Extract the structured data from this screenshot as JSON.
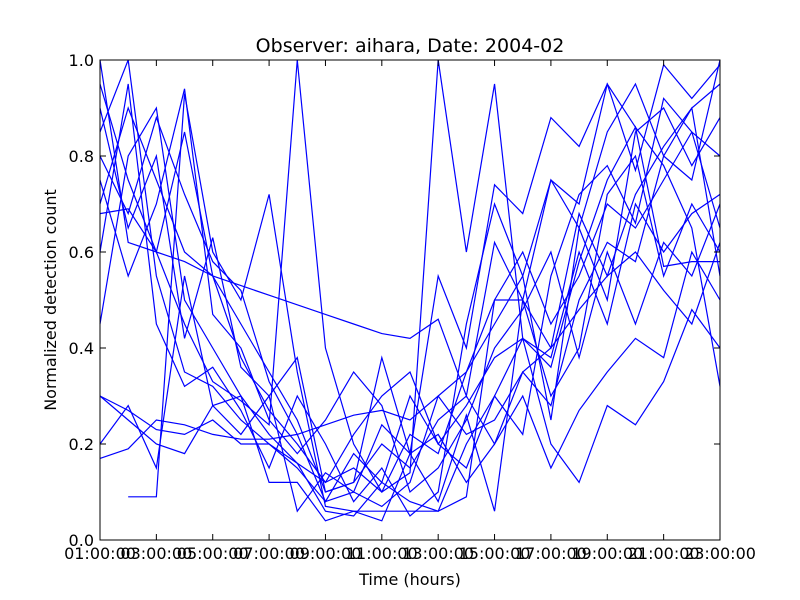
{
  "chart_data": {
    "type": "line",
    "title": "Observer: aihara, Date: 2004-02",
    "xlabel": "Time (hours)",
    "ylabel": "Normalized detection count",
    "xlim": [
      1,
      23
    ],
    "ylim": [
      0,
      1.0
    ],
    "x_ticks": [
      1,
      3,
      5,
      7,
      9,
      11,
      13,
      15,
      17,
      19,
      21,
      23
    ],
    "x_tick_labels": [
      "01:00:00",
      "03:00:00",
      "05:00:00",
      "07:00:00",
      "09:00:00",
      "11:00:00",
      "13:00:00",
      "15:00:00",
      "17:00:00",
      "19:00:00",
      "21:00:00",
      "23:00:00"
    ],
    "y_ticks": [
      0.0,
      0.2,
      0.4,
      0.6,
      0.8,
      1.0
    ],
    "y_tick_labels": [
      "0.0",
      "0.2",
      "0.4",
      "0.6",
      "0.8",
      "1.0"
    ],
    "grid": false,
    "legend": false,
    "line_color": "#0000ff",
    "series": [
      {
        "x": [
          1,
          2,
          3,
          4,
          5,
          6,
          7,
          8,
          9,
          10,
          11,
          12,
          13,
          14,
          15,
          16,
          17,
          18,
          19,
          20,
          21,
          22,
          23
        ],
        "y": [
          0.85,
          1.0,
          0.55,
          0.35,
          0.32,
          0.25,
          0.2,
          0.15,
          0.08,
          0.1,
          0.07,
          0.12,
          0.3,
          0.35,
          0.45,
          0.55,
          0.75,
          0.65,
          0.85,
          0.95,
          0.8,
          0.9,
          0.95
        ]
      },
      {
        "x": [
          1,
          2,
          3,
          4,
          5,
          6,
          7,
          8,
          9,
          10,
          11,
          12,
          13,
          14,
          15,
          16,
          17,
          18,
          19,
          20,
          21,
          22,
          23
        ],
        "y": [
          0.7,
          0.9,
          0.75,
          0.6,
          0.55,
          0.38,
          0.27,
          0.2,
          0.12,
          0.15,
          0.1,
          0.22,
          0.18,
          0.35,
          0.5,
          0.6,
          0.45,
          0.55,
          0.7,
          0.65,
          0.75,
          0.85,
          0.8
        ]
      },
      {
        "x": [
          1,
          2,
          3,
          4,
          5,
          6,
          7,
          8,
          9,
          10,
          11,
          12,
          13,
          14,
          15,
          16,
          17,
          18,
          19,
          20,
          21,
          22,
          23
        ],
        "y": [
          0.45,
          0.8,
          0.9,
          0.5,
          0.4,
          0.3,
          0.22,
          0.16,
          0.06,
          0.05,
          0.12,
          0.08,
          0.06,
          0.2,
          0.3,
          0.42,
          0.38,
          0.6,
          0.45,
          0.7,
          0.6,
          0.68,
          0.72
        ]
      },
      {
        "x": [
          1,
          2,
          3,
          4,
          5,
          6,
          7,
          8,
          9,
          10,
          11,
          12,
          13,
          14,
          15,
          16,
          17,
          18,
          19,
          20,
          21,
          22,
          23
        ],
        "y": [
          0.95,
          0.75,
          0.6,
          0.85,
          0.55,
          0.45,
          0.35,
          0.25,
          0.1,
          0.12,
          0.2,
          0.15,
          0.25,
          0.3,
          0.2,
          0.35,
          0.28,
          0.5,
          0.62,
          0.58,
          0.8,
          0.75,
          1.0
        ]
      },
      {
        "x": [
          1,
          2,
          3,
          4,
          5,
          6,
          7,
          8,
          9,
          10,
          11,
          12,
          13,
          14,
          15,
          16,
          17,
          18,
          19,
          20,
          21,
          22,
          23
        ],
        "y": [
          0.9,
          0.65,
          0.8,
          0.42,
          0.63,
          0.36,
          0.3,
          0.06,
          0.14,
          0.1,
          0.24,
          0.18,
          0.08,
          0.26,
          0.06,
          0.5,
          0.3,
          0.4,
          0.72,
          0.8,
          0.55,
          0.7,
          0.6
        ]
      },
      {
        "x": [
          1,
          2,
          3,
          4,
          5,
          6,
          7,
          8,
          9,
          10,
          11,
          12,
          13,
          14,
          15,
          16,
          17,
          18,
          19,
          20,
          21,
          22,
          23
        ],
        "y": [
          0.6,
          0.95,
          0.45,
          0.32,
          0.36,
          0.27,
          0.15,
          0.3,
          0.2,
          0.08,
          0.15,
          0.05,
          0.1,
          0.45,
          0.7,
          0.55,
          0.25,
          0.65,
          0.5,
          0.85,
          0.9,
          0.78,
          0.88
        ]
      },
      {
        "x": [
          1,
          2,
          3,
          4,
          5,
          6,
          7,
          8,
          9,
          10,
          11,
          12,
          13,
          14,
          15,
          16,
          17,
          18,
          19,
          20,
          21,
          22,
          23
        ],
        "y": [
          0.75,
          0.55,
          0.7,
          0.94,
          0.47,
          0.4,
          0.25,
          0.18,
          0.25,
          0.35,
          0.28,
          0.1,
          0.15,
          0.25,
          0.4,
          0.48,
          0.6,
          0.38,
          0.6,
          0.45,
          0.62,
          0.55,
          0.7
        ]
      },
      {
        "x": [
          1,
          2,
          3,
          4,
          5,
          6,
          7,
          8,
          9,
          10,
          11,
          12,
          13,
          14,
          15,
          16,
          17,
          18,
          19,
          20,
          21,
          22,
          23
        ],
        "y": [
          0.8,
          0.68,
          0.88,
          0.72,
          0.58,
          0.52,
          0.33,
          0.22,
          0.08,
          0.18,
          0.12,
          0.3,
          0.2,
          0.15,
          0.3,
          0.22,
          0.55,
          0.72,
          0.78,
          0.66,
          0.92,
          0.85,
          0.65
        ]
      },
      {
        "x": [
          1,
          2,
          3,
          4,
          5,
          6,
          7,
          8,
          9,
          10,
          11,
          12,
          13,
          14,
          15,
          16,
          17,
          18,
          19,
          20,
          21,
          22,
          23
        ],
        "y": [
          0.2,
          0.28,
          0.15,
          0.55,
          0.28,
          0.3,
          0.12,
          0.12,
          0.04,
          0.06,
          0.04,
          0.18,
          0.22,
          0.12,
          0.2,
          0.3,
          0.15,
          0.27,
          0.35,
          0.42,
          0.38,
          0.6,
          0.5
        ]
      },
      {
        "x": [
          1,
          2,
          3,
          4,
          5,
          6,
          7,
          8,
          9,
          10,
          11,
          12,
          13,
          14,
          15,
          16,
          17,
          18,
          19,
          20,
          21,
          22,
          23
        ],
        "y": [
          0.3,
          0.27,
          0.23,
          0.22,
          0.25,
          0.2,
          0.2,
          0.16,
          0.12,
          0.22,
          0.3,
          0.35,
          0.2,
          0.28,
          0.38,
          0.42,
          0.2,
          0.12,
          0.28,
          0.24,
          0.33,
          0.48,
          0.4
        ]
      },
      {
        "x": [
          1,
          2,
          3,
          4,
          5,
          6,
          7,
          8,
          9,
          10,
          11,
          12,
          13,
          14,
          15,
          16,
          17,
          18,
          19,
          20,
          21,
          22,
          23
        ],
        "y": [
          0.17,
          0.19,
          0.25,
          0.24,
          0.22,
          0.21,
          0.21,
          0.22,
          0.24,
          0.26,
          0.27,
          0.25,
          0.3,
          0.22,
          0.25,
          0.35,
          0.4,
          0.48,
          0.55,
          0.6,
          0.52,
          0.45,
          0.62
        ]
      },
      {
        "x": [
          2,
          3,
          4,
          5,
          6,
          7,
          8,
          9,
          10,
          11,
          12,
          13,
          14,
          15,
          16,
          17,
          18,
          19,
          20,
          21,
          22,
          23
        ],
        "y": [
          0.09,
          0.09,
          0.93,
          0.6,
          0.5,
          0.72,
          0.35,
          0.07,
          0.06,
          0.06,
          0.06,
          0.06,
          0.09,
          0.5,
          0.5,
          0.75,
          0.7,
          0.95,
          0.86,
          0.78,
          0.65,
          0.32
        ]
      },
      {
        "x": [
          1,
          2,
          3,
          4,
          5,
          6,
          7,
          8,
          9,
          10,
          11,
          12,
          13,
          14,
          15,
          16,
          17,
          18,
          19,
          20,
          21,
          22,
          23
        ],
        "y": [
          1.0,
          0.62,
          0.6,
          0.58,
          0.55,
          0.53,
          0.51,
          0.49,
          0.47,
          0.45,
          0.43,
          0.42,
          0.46,
          0.3,
          0.62,
          0.5,
          0.4,
          0.68,
          0.55,
          0.72,
          0.82,
          0.9,
          0.55
        ]
      },
      {
        "x": [
          1,
          2,
          3,
          4,
          5,
          6,
          7,
          8,
          9,
          10,
          11,
          12,
          13,
          14,
          15,
          16,
          17,
          18,
          19,
          20,
          21,
          22,
          23
        ],
        "y": [
          0.3,
          0.25,
          0.2,
          0.18,
          0.28,
          0.22,
          0.3,
          0.38,
          0.1,
          0.12,
          0.38,
          0.18,
          0.55,
          0.4,
          0.74,
          0.68,
          0.88,
          0.82,
          0.95,
          0.77,
          0.99,
          0.92,
          0.99
        ]
      },
      {
        "x": [
          1,
          2,
          3,
          4,
          5,
          6,
          7,
          8,
          9,
          10,
          11,
          12,
          13,
          14,
          15,
          16,
          17,
          18,
          19,
          20,
          21,
          22,
          23
        ],
        "y": [
          0.68,
          0.69,
          0.6,
          0.45,
          0.33,
          0.29,
          0.24,
          1.0,
          0.4,
          0.2,
          0.1,
          0.14,
          1.0,
          0.6,
          0.95,
          0.42,
          0.36,
          0.58,
          0.75,
          0.86,
          0.57,
          0.58,
          0.58
        ]
      }
    ]
  }
}
